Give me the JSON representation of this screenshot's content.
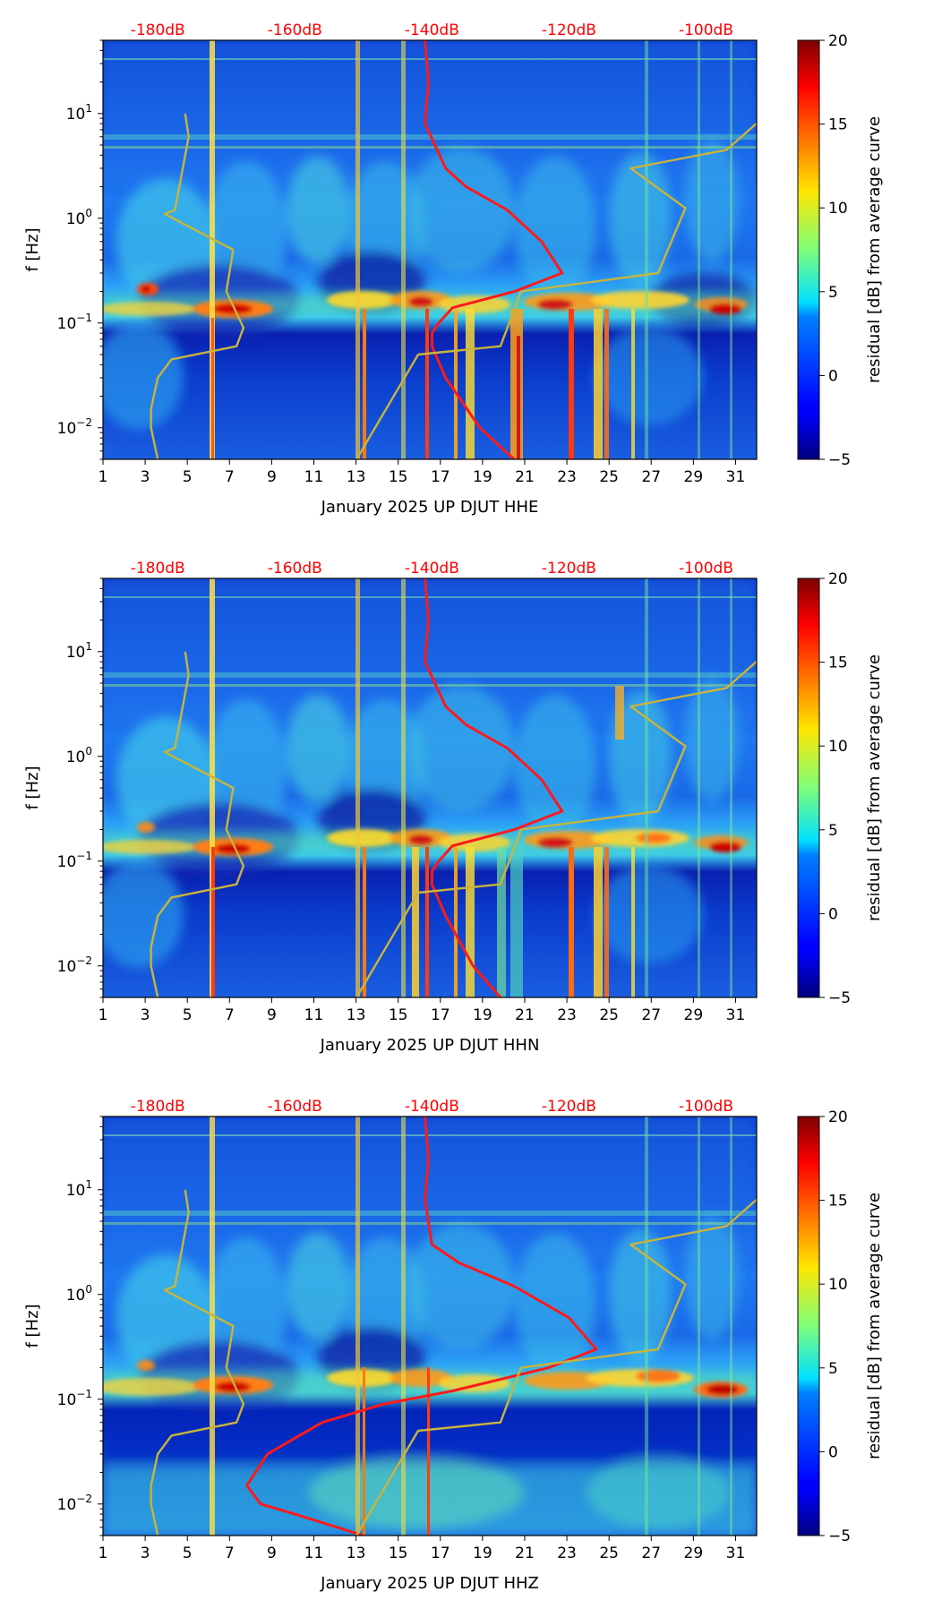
{
  "figure": {
    "colorbar_label": "residual [dB] from average curve",
    "colorbar_ticks": [
      "20",
      "15",
      "10",
      "5",
      "0",
      "−5"
    ],
    "ylabel": "f [Hz]",
    "x_ticks": [
      "1",
      "3",
      "5",
      "7",
      "9",
      "11",
      "13",
      "15",
      "17",
      "19",
      "21",
      "23",
      "25",
      "27",
      "29",
      "31"
    ],
    "db_ticks": [
      "-180dB",
      "-160dB",
      "-140dB",
      "-120dB",
      "-100dB"
    ],
    "colors": {
      "average_curve": "#ff1a1a",
      "noise_model": "#c8b43c",
      "db_label": "#ff0000"
    }
  },
  "chart_data": [
    {
      "type": "heatmap",
      "title": "",
      "xlabel": "January 2025 UP DJUT  HHE",
      "ylabel": "f [Hz]",
      "xlim": [
        1,
        32
      ],
      "ylim": [
        0.005,
        50
      ],
      "yscale": "log",
      "y_ticks": [
        0.01,
        0.1,
        1,
        10
      ],
      "colorbar": {
        "label": "residual [dB] from average curve",
        "range": [
          -5,
          20
        ],
        "ticks": [
          20,
          15,
          10,
          5,
          0,
          -5
        ]
      },
      "db_axis": {
        "position": "top",
        "ticks": [
          -180,
          -160,
          -140,
          -120,
          -100
        ],
        "labels": [
          "-180dB",
          "-160dB",
          "-140dB",
          "-120dB",
          "-100dB"
        ]
      },
      "series": [
        {
          "name": "average curve (red)",
          "x_db": [
            -141,
            -140.5,
            -141,
            -138,
            -135,
            -129,
            -124,
            -121,
            -128,
            -137,
            -139,
            -140,
            -140,
            -138,
            -133,
            -128
          ],
          "f_hz": [
            50,
            20,
            8,
            3,
            2,
            1.2,
            0.6,
            0.3,
            0.2,
            0.14,
            0.1,
            0.08,
            0.06,
            0.03,
            0.01,
            0.005
          ]
        },
        {
          "name": "noise model low (yellow)",
          "x_db": [
            -176,
            -175.5,
            -177.5,
            -179,
            -169,
            -170,
            -167.5,
            -168.5,
            -178,
            -180,
            -181,
            -181,
            -180
          ],
          "f_hz": [
            10,
            6,
            1.2,
            1.1,
            0.5,
            0.2,
            0.09,
            0.06,
            0.045,
            0.03,
            0.015,
            0.01,
            0.005
          ]
        },
        {
          "name": "noise model high (yellow)",
          "x_db": [
            -91,
            -97,
            -111,
            -103,
            -107,
            -127,
            -130,
            -142,
            -151
          ],
          "f_hz": [
            10,
            4.5,
            3,
            1.25,
            0.3,
            0.2,
            0.06,
            0.05,
            0.005
          ]
        }
      ]
    },
    {
      "type": "heatmap",
      "title": "",
      "xlabel": "January 2025 UP DJUT  HHN",
      "ylabel": "f [Hz]",
      "xlim": [
        1,
        32
      ],
      "ylim": [
        0.005,
        50
      ],
      "yscale": "log",
      "y_ticks": [
        0.01,
        0.1,
        1,
        10
      ],
      "colorbar": {
        "label": "residual [dB] from average curve",
        "range": [
          -5,
          20
        ],
        "ticks": [
          20,
          15,
          10,
          5,
          0,
          -5
        ]
      },
      "db_axis": {
        "position": "top",
        "ticks": [
          -180,
          -160,
          -140,
          -120,
          -100
        ],
        "labels": [
          "-180dB",
          "-160dB",
          "-140dB",
          "-120dB",
          "-100dB"
        ]
      },
      "series": [
        {
          "name": "average curve (red)",
          "x_db": [
            -141,
            -140.5,
            -141,
            -138,
            -135,
            -129,
            -124,
            -121,
            -128,
            -137,
            -139,
            -140,
            -140,
            -138,
            -134,
            -130
          ],
          "f_hz": [
            50,
            20,
            8,
            3,
            2,
            1.2,
            0.6,
            0.3,
            0.2,
            0.14,
            0.1,
            0.08,
            0.06,
            0.03,
            0.01,
            0.005
          ]
        },
        {
          "name": "noise model low (yellow)",
          "x_db": [
            -176,
            -175.5,
            -177.5,
            -179,
            -169,
            -170,
            -167.5,
            -168.5,
            -178,
            -180,
            -181,
            -181,
            -180
          ],
          "f_hz": [
            10,
            6,
            1.2,
            1.1,
            0.5,
            0.2,
            0.09,
            0.06,
            0.045,
            0.03,
            0.015,
            0.01,
            0.005
          ]
        },
        {
          "name": "noise model high (yellow)",
          "x_db": [
            -91,
            -97,
            -111,
            -103,
            -107,
            -127,
            -130,
            -142,
            -151
          ],
          "f_hz": [
            10,
            4.5,
            3,
            1.25,
            0.3,
            0.2,
            0.06,
            0.05,
            0.005
          ]
        }
      ]
    },
    {
      "type": "heatmap",
      "title": "",
      "xlabel": "January 2025 UP DJUT  HHZ",
      "ylabel": "f [Hz]",
      "xlim": [
        1,
        32
      ],
      "ylim": [
        0.005,
        50
      ],
      "yscale": "log",
      "y_ticks": [
        0.01,
        0.1,
        1,
        10
      ],
      "colorbar": {
        "label": "residual [dB] from average curve",
        "range": [
          -5,
          20
        ],
        "ticks": [
          20,
          15,
          10,
          5,
          0,
          -5
        ]
      },
      "db_axis": {
        "position": "top",
        "ticks": [
          -180,
          -160,
          -140,
          -120,
          -100
        ],
        "labels": [
          "-180dB",
          "-160dB",
          "-140dB",
          "-120dB",
          "-100dB"
        ]
      },
      "series": [
        {
          "name": "average curve (red)",
          "x_db": [
            -141,
            -140.5,
            -141,
            -140,
            -136,
            -128,
            -120,
            -116,
            -123,
            -137,
            -147,
            -156,
            -164,
            -167,
            -165,
            -160,
            -150
          ],
          "f_hz": [
            50,
            20,
            8,
            3,
            2,
            1.2,
            0.6,
            0.3,
            0.2,
            0.12,
            0.09,
            0.06,
            0.03,
            0.015,
            0.01,
            0.008,
            0.005
          ]
        },
        {
          "name": "noise model low (yellow)",
          "x_db": [
            -176,
            -175.5,
            -177.5,
            -179,
            -169,
            -170,
            -167.5,
            -168.5,
            -178,
            -180,
            -181,
            -181,
            -180
          ],
          "f_hz": [
            10,
            6,
            1.2,
            1.1,
            0.5,
            0.2,
            0.09,
            0.06,
            0.045,
            0.03,
            0.015,
            0.01,
            0.005
          ]
        },
        {
          "name": "noise model high (yellow)",
          "x_db": [
            -91,
            -97,
            -111,
            -103,
            -107,
            -127,
            -130,
            -142,
            -151
          ],
          "f_hz": [
            10,
            4.5,
            3,
            1.25,
            0.3,
            0.2,
            0.06,
            0.05,
            0.005
          ]
        }
      ]
    }
  ]
}
